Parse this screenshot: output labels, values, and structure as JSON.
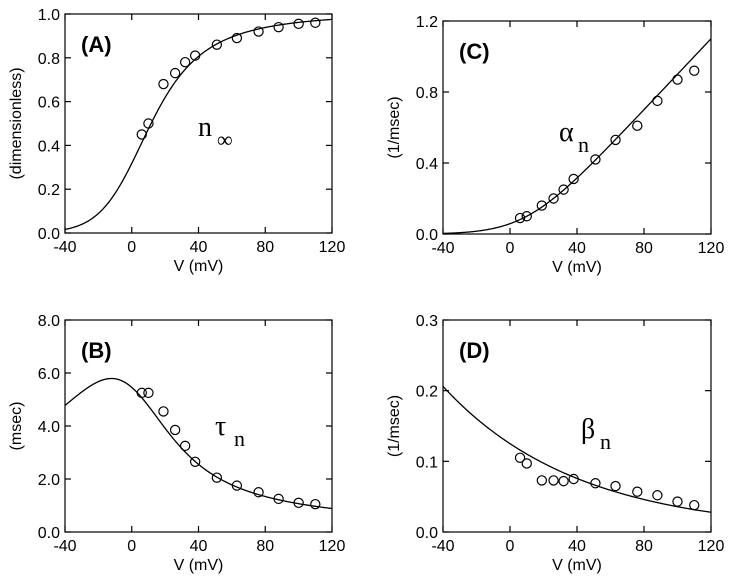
{
  "chart_data": [
    {
      "id": "A",
      "type": "scatter",
      "panel_label": "(A)",
      "annotation": {
        "main": "n",
        "sub": "∞"
      },
      "xlabel": "V (mV)",
      "ylabel": "(dimensionless)",
      "xlim": [
        -40,
        120
      ],
      "ylim": [
        0,
        1.0
      ],
      "xticks": [
        "-40",
        "0",
        "40",
        "80",
        "120"
      ],
      "yticks": [
        "0.0",
        "0.2",
        "0.4",
        "0.6",
        "0.8",
        "1.0"
      ],
      "curve": "n_inf",
      "points": [
        {
          "x": 6,
          "y": 0.45
        },
        {
          "x": 10,
          "y": 0.5
        },
        {
          "x": 19,
          "y": 0.68
        },
        {
          "x": 26,
          "y": 0.73
        },
        {
          "x": 32,
          "y": 0.78
        },
        {
          "x": 38,
          "y": 0.81
        },
        {
          "x": 51,
          "y": 0.86
        },
        {
          "x": 63,
          "y": 0.89
        },
        {
          "x": 76,
          "y": 0.92
        },
        {
          "x": 88,
          "y": 0.94
        },
        {
          "x": 100,
          "y": 0.955
        },
        {
          "x": 110,
          "y": 0.96
        }
      ]
    },
    {
      "id": "C",
      "type": "scatter",
      "panel_label": "(C)",
      "annotation": {
        "main": "α",
        "sub": "n"
      },
      "xlabel": "V (mV)",
      "ylabel": "(1/msec)",
      "xlim": [
        -40,
        120
      ],
      "ylim": [
        0,
        1.2
      ],
      "xticks": [
        "-40",
        "0",
        "40",
        "80",
        "120"
      ],
      "yticks": [
        "0.0",
        "0.4",
        "0.8",
        "1.2"
      ],
      "curve": "alpha_n",
      "points": [
        {
          "x": 6,
          "y": 0.09
        },
        {
          "x": 10,
          "y": 0.1
        },
        {
          "x": 19,
          "y": 0.16
        },
        {
          "x": 26,
          "y": 0.2
        },
        {
          "x": 32,
          "y": 0.25
        },
        {
          "x": 38,
          "y": 0.31
        },
        {
          "x": 51,
          "y": 0.42
        },
        {
          "x": 63,
          "y": 0.53
        },
        {
          "x": 76,
          "y": 0.61
        },
        {
          "x": 88,
          "y": 0.75
        },
        {
          "x": 100,
          "y": 0.87
        },
        {
          "x": 110,
          "y": 0.92
        }
      ]
    },
    {
      "id": "B",
      "type": "scatter",
      "panel_label": "(B)",
      "annotation": {
        "main": "τ",
        "sub": "n"
      },
      "xlabel": "V (mV)",
      "ylabel": "(msec)",
      "xlim": [
        -40,
        120
      ],
      "ylim": [
        0,
        8.0
      ],
      "xticks": [
        "-40",
        "0",
        "40",
        "80",
        "120"
      ],
      "yticks": [
        "0.0",
        "2.0",
        "4.0",
        "6.0",
        "8.0"
      ],
      "curve": "tau_n",
      "points": [
        {
          "x": 6,
          "y": 5.25
        },
        {
          "x": 10,
          "y": 5.25
        },
        {
          "x": 19,
          "y": 4.55
        },
        {
          "x": 26,
          "y": 3.85
        },
        {
          "x": 32,
          "y": 3.25
        },
        {
          "x": 38,
          "y": 2.65
        },
        {
          "x": 51,
          "y": 2.05
        },
        {
          "x": 63,
          "y": 1.75
        },
        {
          "x": 76,
          "y": 1.5
        },
        {
          "x": 88,
          "y": 1.25
        },
        {
          "x": 100,
          "y": 1.1
        },
        {
          "x": 110,
          "y": 1.05
        }
      ]
    },
    {
      "id": "D",
      "type": "scatter",
      "panel_label": "(D)",
      "annotation": {
        "main": "β",
        "sub": "n"
      },
      "xlabel": "V (mV)",
      "ylabel": "(1/msec)",
      "xlim": [
        -40,
        120
      ],
      "ylim": [
        0,
        0.3
      ],
      "xticks": [
        "-40",
        "0",
        "40",
        "80",
        "120"
      ],
      "yticks": [
        "0.0",
        "0.1",
        "0.2",
        "0.3"
      ],
      "curve": "beta_n",
      "points": [
        {
          "x": 6,
          "y": 0.105
        },
        {
          "x": 10,
          "y": 0.097
        },
        {
          "x": 19,
          "y": 0.073
        },
        {
          "x": 26,
          "y": 0.073
        },
        {
          "x": 32,
          "y": 0.072
        },
        {
          "x": 38,
          "y": 0.075
        },
        {
          "x": 51,
          "y": 0.069
        },
        {
          "x": 63,
          "y": 0.065
        },
        {
          "x": 76,
          "y": 0.057
        },
        {
          "x": 88,
          "y": 0.052
        },
        {
          "x": 100,
          "y": 0.043
        },
        {
          "x": 110,
          "y": 0.038
        }
      ]
    }
  ]
}
